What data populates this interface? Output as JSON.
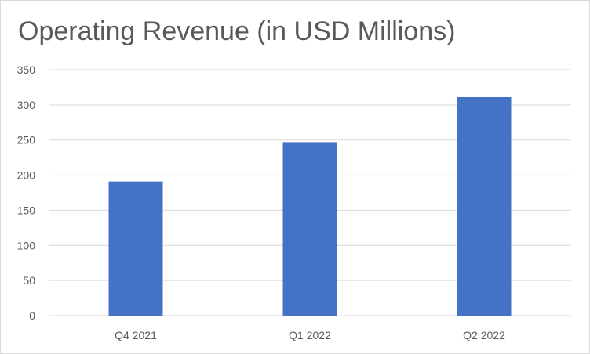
{
  "chart_data": {
    "type": "bar",
    "title": "Operating Revenue (in USD Millions)",
    "categories": [
      "Q4 2021",
      "Q1 2022",
      "Q2 2022"
    ],
    "values": [
      191,
      247,
      311
    ],
    "xlabel": "",
    "ylabel": "",
    "ylim": [
      0,
      350
    ],
    "yticks": [
      0,
      50,
      100,
      150,
      200,
      250,
      300,
      350
    ],
    "grid": true,
    "legend": "none",
    "bar_color": "#4472C4",
    "grid_color": "#d9d9d9"
  }
}
